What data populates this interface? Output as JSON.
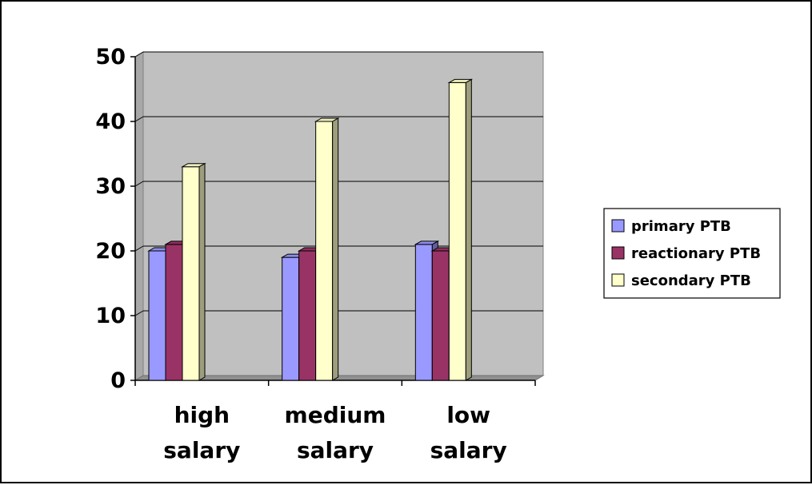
{
  "chart_data": {
    "type": "bar",
    "title": "",
    "xlabel": "",
    "ylabel": "",
    "ylim": [
      0,
      50
    ],
    "yticks": [
      0,
      10,
      20,
      30,
      40,
      50
    ],
    "categories": [
      [
        "high",
        "salary"
      ],
      [
        "medium",
        "salary"
      ],
      [
        "low",
        "salary"
      ]
    ],
    "series": [
      {
        "name": "primary PTB",
        "values": [
          20,
          19,
          21
        ],
        "color": "#9999FF"
      },
      {
        "name": "reactionary PTB",
        "values": [
          21,
          20,
          20
        ],
        "color": "#993366"
      },
      {
        "name": "secondary PTB",
        "values": [
          33,
          40,
          46
        ],
        "color": "#FFFFCC"
      }
    ],
    "grid": true,
    "plot_background": "#C0C0C0",
    "legend_position": "right",
    "style": "3d-columns"
  }
}
